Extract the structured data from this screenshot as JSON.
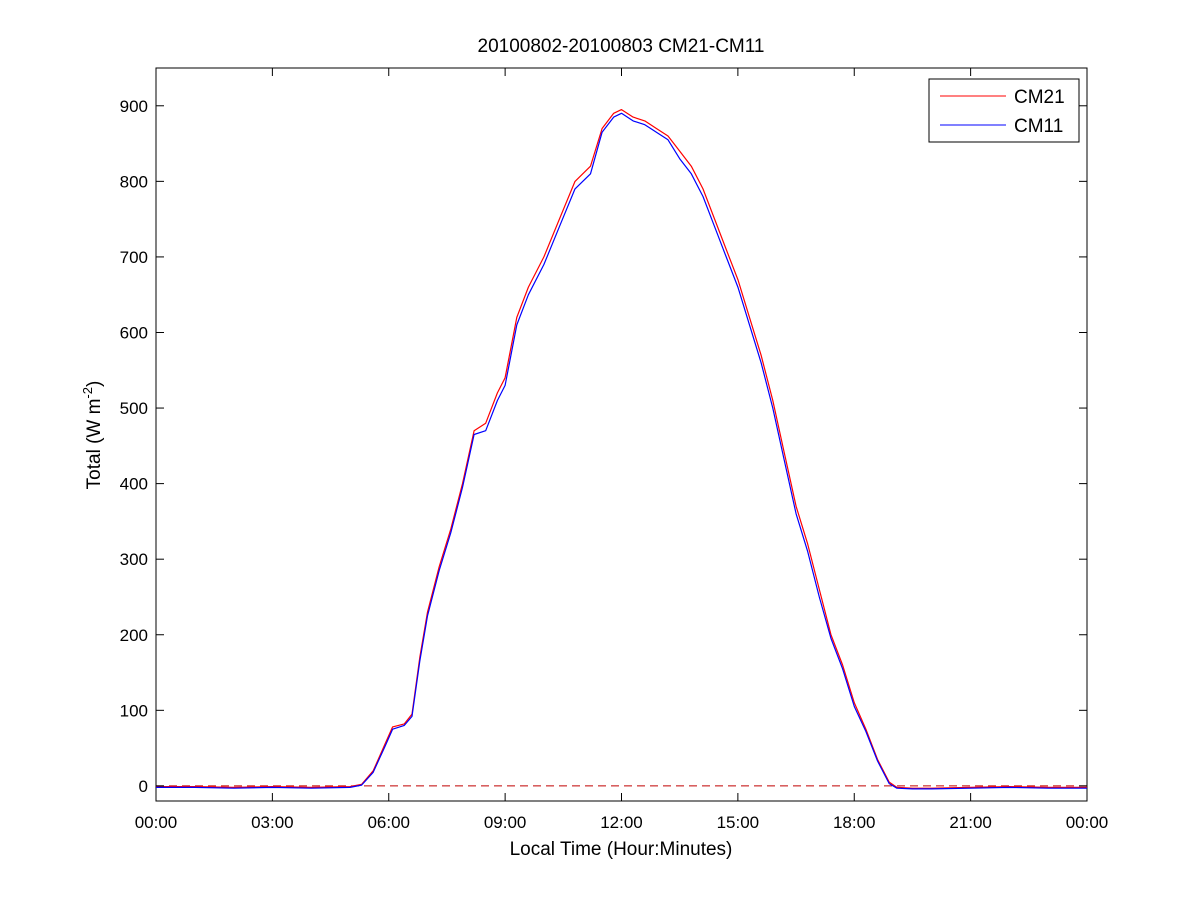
{
  "chart_data": {
    "type": "line",
    "title": "20100802-20100803 CM21-CM11",
    "xlabel": "Local Time (Hour:Minutes)",
    "ylabel_main": "Total (W m",
    "ylabel_sup": "-2",
    "ylabel_close": ")",
    "xlim": [
      0,
      24
    ],
    "ylim": [
      -20,
      950
    ],
    "x_ticks": [
      0,
      3,
      6,
      9,
      12,
      15,
      18,
      21,
      24
    ],
    "x_tick_labels": [
      "00:00",
      "03:00",
      "06:00",
      "09:00",
      "12:00",
      "15:00",
      "18:00",
      "21:00",
      "00:00"
    ],
    "y_ticks": [
      0,
      100,
      200,
      300,
      400,
      500,
      600,
      700,
      800,
      900
    ],
    "y_tick_labels": [
      "0",
      "100",
      "200",
      "300",
      "400",
      "500",
      "600",
      "700",
      "800",
      "900"
    ],
    "grid": false,
    "legend_position": "top-right",
    "reference_line": {
      "y": 0,
      "style": "dashed",
      "color": "#c00000"
    },
    "series": [
      {
        "name": "CM21",
        "color": "#ff0000",
        "x": [
          0,
          1,
          2,
          3,
          4,
          5,
          5.3,
          5.6,
          5.9,
          6.1,
          6.4,
          6.6,
          6.8,
          7.0,
          7.3,
          7.6,
          7.9,
          8.2,
          8.5,
          8.8,
          9.0,
          9.3,
          9.6,
          10.0,
          10.4,
          10.8,
          11.2,
          11.5,
          11.8,
          12.0,
          12.3,
          12.6,
          12.9,
          13.2,
          13.5,
          13.8,
          14.1,
          14.4,
          14.7,
          15.0,
          15.3,
          15.6,
          15.9,
          16.2,
          16.5,
          16.8,
          17.1,
          17.4,
          17.7,
          18.0,
          18.3,
          18.6,
          18.9,
          19.1,
          19.5,
          20,
          21,
          22,
          23,
          24
        ],
        "y": [
          -1,
          -1,
          -2,
          -1,
          -2,
          -1,
          2,
          20,
          55,
          78,
          82,
          95,
          170,
          230,
          290,
          340,
          400,
          470,
          480,
          520,
          540,
          620,
          660,
          700,
          750,
          800,
          820,
          870,
          890,
          895,
          885,
          880,
          870,
          860,
          840,
          820,
          790,
          750,
          710,
          670,
          620,
          570,
          510,
          440,
          370,
          320,
          260,
          200,
          160,
          110,
          75,
          35,
          5,
          -2,
          -3,
          -3,
          -2,
          -1,
          -2,
          -2
        ]
      },
      {
        "name": "CM11",
        "color": "#0000ff",
        "x": [
          0,
          1,
          2,
          3,
          4,
          5,
          5.3,
          5.6,
          5.9,
          6.1,
          6.4,
          6.6,
          6.8,
          7.0,
          7.3,
          7.6,
          7.9,
          8.2,
          8.5,
          8.8,
          9.0,
          9.3,
          9.6,
          10.0,
          10.4,
          10.8,
          11.2,
          11.5,
          11.8,
          12.0,
          12.3,
          12.6,
          12.9,
          13.2,
          13.5,
          13.8,
          14.1,
          14.4,
          14.7,
          15.0,
          15.3,
          15.6,
          15.9,
          16.2,
          16.5,
          16.8,
          17.1,
          17.4,
          17.7,
          18.0,
          18.3,
          18.6,
          18.9,
          19.1,
          19.5,
          20,
          21,
          22,
          23,
          24
        ],
        "y": [
          -2,
          -2,
          -3,
          -2,
          -3,
          -2,
          1,
          18,
          52,
          75,
          80,
          92,
          165,
          225,
          285,
          335,
          395,
          465,
          470,
          510,
          530,
          610,
          650,
          690,
          740,
          790,
          810,
          865,
          885,
          890,
          880,
          875,
          865,
          855,
          830,
          810,
          780,
          740,
          700,
          660,
          610,
          560,
          500,
          430,
          360,
          310,
          250,
          195,
          155,
          105,
          72,
          33,
          3,
          -3,
          -4,
          -4,
          -3,
          -2,
          -3,
          -3
        ]
      }
    ]
  }
}
